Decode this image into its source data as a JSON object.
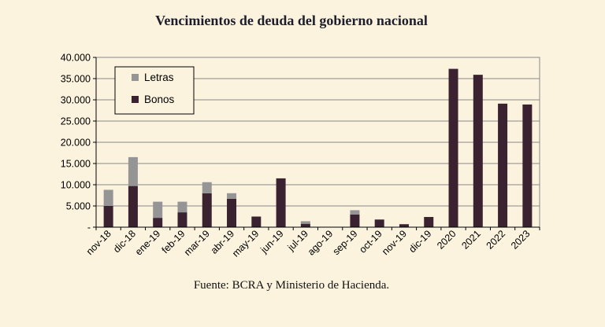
{
  "chart_data": {
    "type": "bar",
    "stacked": true,
    "title": "Vencimientos de deuda del gobierno nacional",
    "source": "Fuente: BCRA y Ministerio de Hacienda.",
    "categories": [
      "nov-18",
      "dic-18",
      "ene-19",
      "feb-19",
      "mar-19",
      "abr-19",
      "may-19",
      "jun-19",
      "jul-19",
      "ago-19",
      "sep-19",
      "oct-19",
      "nov-19",
      "dic-19",
      "2020",
      "2021",
      "2022",
      "2023"
    ],
    "series": [
      {
        "name": "Bonos",
        "color": "#3A2231",
        "values": [
          5000,
          9700,
          2200,
          3500,
          8000,
          6700,
          2500,
          11500,
          800,
          0,
          3000,
          1800,
          700,
          2400,
          37300,
          35900,
          29100,
          28900
        ]
      },
      {
        "name": "Letras",
        "color": "#959595",
        "values": [
          3800,
          6800,
          3800,
          2500,
          2600,
          1300,
          0,
          0,
          600,
          0,
          1000,
          0,
          0,
          0,
          0,
          0,
          0,
          0
        ]
      }
    ],
    "yticks": [
      "40.000",
      "35.000",
      "30.000",
      "25.000",
      "20.000",
      "15.000",
      "10.000",
      "5.000",
      "-"
    ],
    "ylim": [
      0,
      40000
    ],
    "grid": true,
    "legend": {
      "position": "top-left",
      "order": [
        "Letras",
        "Bonos"
      ]
    }
  }
}
